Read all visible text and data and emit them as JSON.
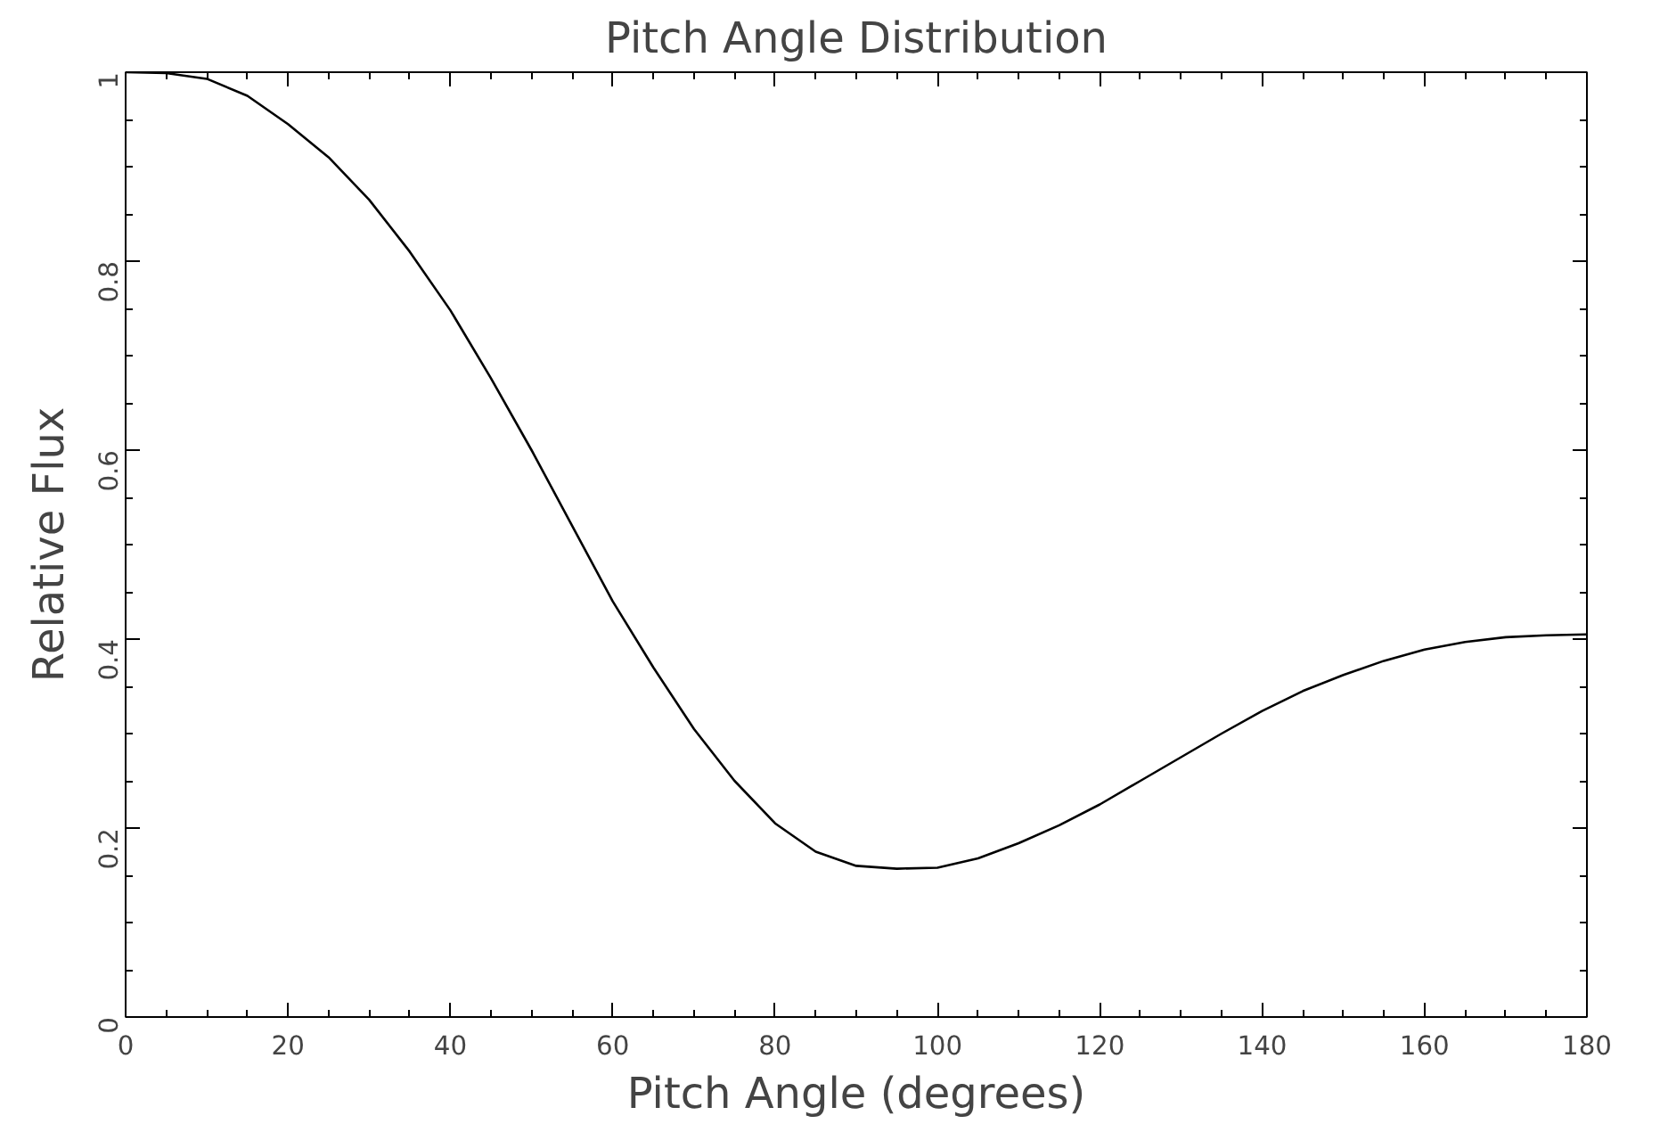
{
  "chart_data": {
    "type": "line",
    "title": "Pitch Angle Distribution",
    "xlabel": "Pitch Angle (degrees)",
    "ylabel": "Relative Flux",
    "x": [
      0,
      5,
      10,
      15,
      20,
      25,
      30,
      35,
      40,
      45,
      50,
      55,
      60,
      65,
      70,
      75,
      80,
      85,
      90,
      95,
      100,
      105,
      110,
      115,
      120,
      125,
      130,
      135,
      140,
      145,
      150,
      155,
      160,
      165,
      170,
      175,
      180
    ],
    "series": [
      {
        "color": "#000000",
        "values": [
          1.0,
          0.999,
          0.993,
          0.975,
          0.945,
          0.91,
          0.865,
          0.81,
          0.748,
          0.676,
          0.6,
          0.52,
          0.44,
          0.37,
          0.305,
          0.25,
          0.205,
          0.175,
          0.16,
          0.157,
          0.158,
          0.168,
          0.184,
          0.203,
          0.225,
          0.25,
          0.275,
          0.3,
          0.324,
          0.345,
          0.362,
          0.377,
          0.389,
          0.397,
          0.402,
          0.404,
          0.405
        ]
      }
    ],
    "xlim": [
      0,
      180
    ],
    "ylim": [
      0,
      1
    ],
    "xticks": [
      0,
      20,
      40,
      60,
      80,
      100,
      120,
      140,
      160,
      180
    ],
    "yticks": [
      0,
      0.2,
      0.4,
      0.6,
      0.8,
      1
    ],
    "grid": false,
    "marker": "none",
    "line_style": "solid"
  }
}
